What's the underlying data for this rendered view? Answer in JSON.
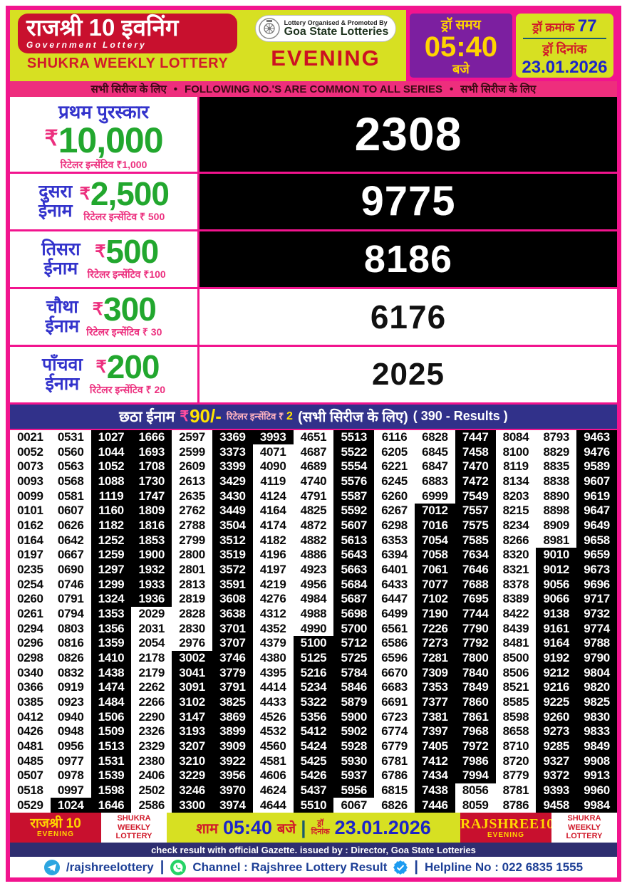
{
  "header": {
    "brand_title": "राजश्री 10 इवनिंग",
    "brand_subtitle": "Government Lottery",
    "weekly": "SHUKRA WEEKLY LOTTERY",
    "organiser_line1": "Lottery Organised & Promoted By",
    "organiser_line2": "Goa State Lotteries",
    "session": "EVENING",
    "draw_time_label": "ड्रॉ समय",
    "draw_time": "05:40",
    "draw_time_suffix": "बजे",
    "draw_no_label": "ड्रॉ क्रमांक",
    "draw_no": "77",
    "draw_date_label": "ड्रॉ दिनांक",
    "draw_date": "23.01.2026"
  },
  "series_strip": {
    "left": "सभी सिरीज के लिए",
    "bullet": "•",
    "center": "FOLLOWING NO.'S ARE COMMON TO ALL SERIES",
    "right": "सभी सिरीज के लिए"
  },
  "prizes": [
    {
      "label": "प्रथम पुरस्कार",
      "label2": "",
      "rupee": "₹",
      "amount": "10,000",
      "incentive": "रिटेलर इन्सेंटिव ₹1,000",
      "number": "2308",
      "number_bg": "black"
    },
    {
      "label": "दुसरा",
      "label2": "ईनाम",
      "rupee": "₹",
      "amount": "2,500",
      "incentive": "रिटेलर इन्सेंटिव ₹ 500",
      "number": "9775",
      "number_bg": "black"
    },
    {
      "label": "तिसरा",
      "label2": "ईनाम",
      "rupee": "₹",
      "amount": "500",
      "incentive": "रिटेलर इन्सेंटिव ₹100",
      "number": "8186",
      "number_bg": "black"
    },
    {
      "label": "चौथा",
      "label2": "ईनाम",
      "rupee": "₹",
      "amount": "300",
      "incentive": "रिटेलर इन्सेंटिव ₹ 30",
      "number": "6176",
      "number_bg": "white"
    },
    {
      "label": "पाँचवा",
      "label2": "ईनाम",
      "rupee": "₹",
      "amount": "200",
      "incentive": "रिटेलर इन्सेंटिव ₹ 20",
      "number": "2025",
      "number_bg": "white"
    }
  ],
  "sixth_prize": {
    "label": "छठा ईनाम",
    "rupee": "₹",
    "amount": "90/-",
    "incentive": "रिटेलर इन्सेंटिव ₹",
    "incentive_value": "2",
    "series_note": "(सभी सिरीज के लिए)",
    "results_count": "( 390 - Results )"
  },
  "results_table": {
    "columns": [
      [
        "0021",
        "0052",
        "0073",
        "0093",
        "0099",
        "0101",
        "0162",
        "0164",
        "0197",
        "0235",
        "0254",
        "0260",
        "0261",
        "0294",
        "0296",
        "0298",
        "0340",
        "0366",
        "0385",
        "0412",
        "0426",
        "0481",
        "0485",
        "0507",
        "0518",
        "0529"
      ],
      [
        "0531",
        "0560",
        "0563",
        "0568",
        "0581",
        "0607",
        "0626",
        "0642",
        "0667",
        "0690",
        "0746",
        "0791",
        "0794",
        "0803",
        "0816",
        "0826",
        "0832",
        "0919",
        "0923",
        "0940",
        "0948",
        "0956",
        "0977",
        "0978",
        "0997",
        "1024"
      ],
      [
        "1027",
        "1044",
        "1052",
        "1088",
        "1119",
        "1160",
        "1182",
        "1252",
        "1259",
        "1297",
        "1299",
        "1324",
        "1353",
        "1356",
        "1359",
        "1410",
        "1438",
        "1474",
        "1484",
        "1506",
        "1509",
        "1513",
        "1531",
        "1539",
        "1598",
        "1646"
      ],
      [
        "1666",
        "1693",
        "1708",
        "1730",
        "1747",
        "1809",
        "1816",
        "1853",
        "1900",
        "1932",
        "1933",
        "1936",
        "2029",
        "2031",
        "2054",
        "2178",
        "2179",
        "2262",
        "2266",
        "2290",
        "2326",
        "2329",
        "2380",
        "2406",
        "2502",
        "2586"
      ],
      [
        "2597",
        "2599",
        "2609",
        "2613",
        "2635",
        "2762",
        "2788",
        "2799",
        "2800",
        "2801",
        "2813",
        "2819",
        "2828",
        "2830",
        "2976",
        "3002",
        "3041",
        "3091",
        "3102",
        "3147",
        "3193",
        "3207",
        "3210",
        "3229",
        "3246",
        "3300"
      ],
      [
        "3369",
        "3373",
        "3399",
        "3429",
        "3430",
        "3449",
        "3504",
        "3512",
        "3519",
        "3572",
        "3591",
        "3608",
        "3638",
        "3701",
        "3707",
        "3746",
        "3779",
        "3791",
        "3825",
        "3869",
        "3899",
        "3909",
        "3922",
        "3956",
        "3970",
        "3974"
      ],
      [
        "3993",
        "4071",
        "4090",
        "4119",
        "4124",
        "4164",
        "4174",
        "4182",
        "4196",
        "4197",
        "4219",
        "4276",
        "4312",
        "4352",
        "4379",
        "4380",
        "4395",
        "4414",
        "4433",
        "4526",
        "4532",
        "4560",
        "4581",
        "4606",
        "4624",
        "4644"
      ],
      [
        "4651",
        "4687",
        "4689",
        "4740",
        "4791",
        "4825",
        "4872",
        "4882",
        "4886",
        "4923",
        "4956",
        "4984",
        "4988",
        "4990",
        "5100",
        "5125",
        "5216",
        "5234",
        "5322",
        "5356",
        "5412",
        "5424",
        "5425",
        "5426",
        "5437",
        "5510"
      ],
      [
        "5513",
        "5522",
        "5554",
        "5576",
        "5587",
        "5592",
        "5607",
        "5613",
        "5643",
        "5663",
        "5684",
        "5687",
        "5698",
        "5700",
        "5712",
        "5725",
        "5784",
        "5846",
        "5879",
        "5900",
        "5902",
        "5928",
        "5930",
        "5937",
        "5956",
        "6067"
      ],
      [
        "6116",
        "6205",
        "6221",
        "6245",
        "6260",
        "6267",
        "6298",
        "6353",
        "6394",
        "6401",
        "6433",
        "6447",
        "6499",
        "6561",
        "6586",
        "6596",
        "6670",
        "6683",
        "6691",
        "6723",
        "6774",
        "6779",
        "6781",
        "6786",
        "6815",
        "6826"
      ],
      [
        "6828",
        "6845",
        "6847",
        "6883",
        "6999",
        "7012",
        "7016",
        "7054",
        "7058",
        "7061",
        "7077",
        "7102",
        "7190",
        "7226",
        "7273",
        "7281",
        "7309",
        "7353",
        "7377",
        "7381",
        "7397",
        "7405",
        "7412",
        "7434",
        "7438",
        "7446"
      ],
      [
        "7447",
        "7458",
        "7470",
        "7472",
        "7549",
        "7557",
        "7575",
        "7585",
        "7634",
        "7646",
        "7688",
        "7695",
        "7744",
        "7790",
        "7792",
        "7800",
        "7840",
        "7849",
        "7860",
        "7861",
        "7968",
        "7972",
        "7986",
        "7994",
        "8056",
        "8059"
      ],
      [
        "8084",
        "8100",
        "8119",
        "8134",
        "8203",
        "8215",
        "8234",
        "8266",
        "8320",
        "8321",
        "8378",
        "8389",
        "8422",
        "8439",
        "8481",
        "8500",
        "8506",
        "8521",
        "8585",
        "8598",
        "8658",
        "8710",
        "8720",
        "8779",
        "8781",
        "8786"
      ],
      [
        "8793",
        "8829",
        "8835",
        "8838",
        "8890",
        "8898",
        "8909",
        "8981",
        "9010",
        "9012",
        "9056",
        "9066",
        "9138",
        "9161",
        "9164",
        "9192",
        "9212",
        "9216",
        "9225",
        "9260",
        "9273",
        "9285",
        "9327",
        "9372",
        "9393",
        "9458"
      ],
      [
        "9463",
        "9476",
        "9589",
        "9607",
        "9619",
        "9647",
        "9649",
        "9658",
        "9659",
        "9673",
        "9696",
        "9717",
        "9732",
        "9774",
        "9788",
        "9790",
        "9804",
        "9820",
        "9825",
        "9830",
        "9833",
        "9849",
        "9908",
        "9913",
        "9960",
        "9984"
      ]
    ]
  },
  "footer": {
    "left_brand": "राजश्री 10",
    "left_session": "EVENING",
    "weekly_left": "SHUKRA WEEKLY LOTTERY",
    "center": {
      "sham": "शाम",
      "time": "05:40",
      "baje": "बजे",
      "draw_word": "ड्रॉ",
      "date_word": "दिनांक",
      "date": "23.01.2026"
    },
    "right_brand": "RAJSHREE10",
    "right_session": "EVENING",
    "weekly_right": "SHUKRA WEEKLY LOTTERY",
    "gazette": "check result with official Gazette. issued by : Director, Goa State Lotteries",
    "telegram_handle": "/rajshreelottery",
    "channel_text": "Channel : Rajshree Lottery Result",
    "helpline": "Helpline No : 022 6835 1555"
  },
  "colors": {
    "frame_pink": "#f2148e",
    "header_red": "#c8102e",
    "banner_yellow": "#d7e022",
    "purple": "#7c1fa0",
    "blue": "#1c24c8",
    "green_amount": "#22a72e",
    "pink_text": "#ec2f7e",
    "navy_bar": "#31318a",
    "black_cell": "#000000"
  }
}
